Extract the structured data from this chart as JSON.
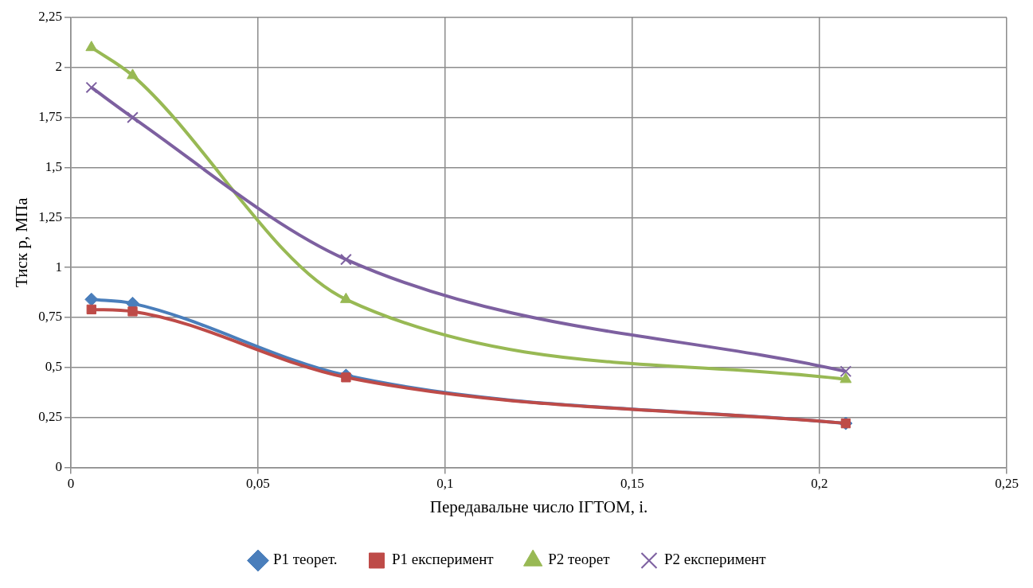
{
  "chart_data": {
    "type": "line",
    "xlabel": "Передавальне число ІГТОМ, i.",
    "ylabel": "Тиск p, МПа",
    "x": [
      0.0055,
      0.0165,
      0.0735,
      0.207
    ],
    "series": [
      {
        "name": "P1 теорет.",
        "color": "#4a7ebb",
        "marker": "diamond",
        "values": [
          0.84,
          0.82,
          0.46,
          0.22
        ]
      },
      {
        "name": "P1 експеримент",
        "color": "#be4b48",
        "marker": "square",
        "values": [
          0.79,
          0.78,
          0.45,
          0.22
        ]
      },
      {
        "name": "P2 теорет",
        "color": "#98b954",
        "marker": "triangle",
        "values": [
          2.1,
          1.96,
          0.84,
          0.44
        ]
      },
      {
        "name": "P2 експеримент",
        "color": "#7d60a0",
        "marker": "cross",
        "values": [
          1.9,
          1.75,
          1.04,
          0.48
        ]
      }
    ],
    "xlim": [
      0,
      0.25
    ],
    "xticks": [
      0,
      {
        "value": 0.05,
        "label": "0,05"
      },
      {
        "value": 0.1,
        "label": "0,1"
      },
      {
        "value": 0.15,
        "label": "0,15"
      },
      {
        "value": 0.2,
        "label": "0,2"
      },
      {
        "value": 0.25,
        "label": "0,25"
      }
    ],
    "ylim": [
      0,
      2.25
    ],
    "yticks": [
      0,
      {
        "value": 0.25,
        "label": "0,25"
      },
      {
        "value": 0.5,
        "label": "0,5"
      },
      {
        "value": 0.75,
        "label": "0,75"
      },
      1,
      {
        "value": 1.25,
        "label": "1,25"
      },
      {
        "value": 1.5,
        "label": "1,5"
      },
      {
        "value": 1.75,
        "label": "1,75"
      },
      2,
      {
        "value": 2.25,
        "label": "2,25"
      }
    ],
    "grid": true,
    "legend": "bottom"
  }
}
